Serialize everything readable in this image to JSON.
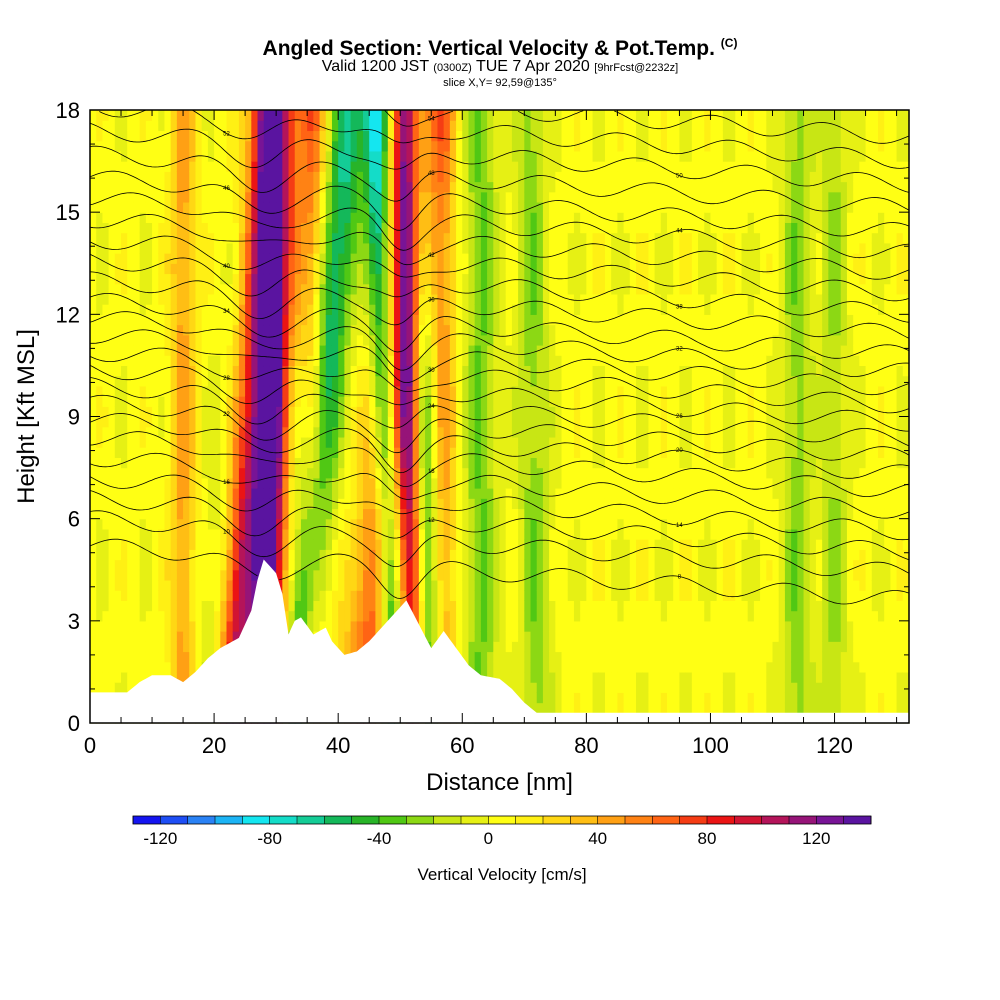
{
  "header": {
    "title_main": "Angled Section: Vertical Velocity & Pot.Temp.",
    "title_suffix": "(C)",
    "valid_prefix": "Valid 1200 JST",
    "valid_utc": "(0300Z)",
    "valid_date": "TUE 7 Apr 2020",
    "forecast": "[9hrFcst@2232z]",
    "slice": "slice X,Y= 92,59@135°"
  },
  "chart_data": {
    "type": "heatmap",
    "xlabel": "Distance [nm]",
    "ylabel": "Height [Kft MSL]",
    "xlim": [
      0,
      132
    ],
    "ylim": [
      0,
      18
    ],
    "x_ticks": [
      0,
      20,
      40,
      60,
      80,
      100,
      120
    ],
    "y_ticks": [
      0,
      3,
      6,
      9,
      12,
      15,
      18
    ],
    "colorbar": {
      "label": "Vertical Velocity [cm/s]",
      "min": -130,
      "max": 140,
      "step": 10,
      "tick_values": [
        -120,
        -80,
        -40,
        0,
        40,
        80,
        120
      ],
      "tick_labels": [
        "-120",
        "-80",
        "-40",
        "0",
        "40",
        "80",
        "120"
      ],
      "colors": [
        "#1414f0",
        "#1e4ef5",
        "#2a82f5",
        "#1cb4f5",
        "#14e6f0",
        "#14dcc8",
        "#14cc96",
        "#14b85a",
        "#28b428",
        "#50c814",
        "#8cd814",
        "#c8e614",
        "#e6f014",
        "#ffff14",
        "#fff014",
        "#ffd714",
        "#ffbe14",
        "#ffa014",
        "#ff8214",
        "#ff6414",
        "#f53c14",
        "#eb1414",
        "#d21432",
        "#b4145a",
        "#961478",
        "#781496",
        "#5a14a0"
      ]
    },
    "updrafts": [
      {
        "x_low": 29,
        "x_high": 29,
        "peak_cms": 110,
        "width_nm": 2.5
      },
      {
        "x_low": 22,
        "x_high": 27,
        "peak_cms": 80,
        "width_nm": 3
      },
      {
        "x_low": 24,
        "x_high": 32,
        "peak_cms": 60,
        "width_nm": 4
      },
      {
        "x_low": 52,
        "x_high": 51,
        "peak_cms": 95,
        "width_nm": 2
      },
      {
        "x_low": 44,
        "x_high": 53,
        "peak_cms": 65,
        "width_nm": 4
      },
      {
        "x_low": 15,
        "x_high": 15,
        "peak_cms": 40,
        "width_nm": 2
      },
      {
        "x_low": 36,
        "x_high": 36,
        "peak_cms": 40,
        "width_nm": 2
      },
      {
        "x_low": 57,
        "x_high": 57,
        "peak_cms": 40,
        "width_nm": 2
      }
    ],
    "downdrafts": [
      {
        "x_low": 20,
        "x_high": 27,
        "peak_cms": -55,
        "width_nm": 3
      },
      {
        "x_low": 33,
        "x_high": 42,
        "peak_cms": -65,
        "width_nm": 3
      },
      {
        "x_low": 49,
        "x_high": 46,
        "peak_cms": -85,
        "width_nm": 2
      },
      {
        "x_low": 55,
        "x_high": 52,
        "peak_cms": -60,
        "width_nm": 2
      },
      {
        "x_low": 63,
        "x_high": 63,
        "peak_cms": -35,
        "width_nm": 2.5
      },
      {
        "x_low": 72,
        "x_high": 71,
        "peak_cms": -30,
        "width_nm": 2.5
      },
      {
        "x_low": 114,
        "x_high": 114,
        "peak_cms": -30,
        "width_nm": 2.5
      },
      {
        "x_low": 120,
        "x_high": 120,
        "peak_cms": -25,
        "width_nm": 2
      }
    ],
    "terrain": {
      "x": [
        0,
        6,
        8,
        10,
        13,
        15,
        17,
        19,
        21,
        24,
        25,
        26,
        27,
        28,
        30,
        31,
        32,
        33,
        34,
        36,
        38,
        39,
        41,
        43,
        45,
        47,
        49,
        51,
        53,
        55,
        57,
        59,
        61,
        63,
        66,
        68,
        70,
        72,
        76,
        132
      ],
      "height_kft": [
        0.9,
        0.9,
        1.2,
        1.4,
        1.4,
        1.2,
        1.5,
        1.9,
        2.2,
        2.5,
        2.9,
        3.3,
        4.2,
        4.8,
        4.4,
        3.8,
        2.6,
        3.0,
        3.1,
        2.6,
        2.8,
        2.4,
        2.0,
        2.1,
        2.4,
        2.8,
        3.2,
        3.6,
        2.9,
        2.2,
        2.7,
        2.2,
        1.7,
        1.4,
        1.3,
        1.0,
        0.6,
        0.3,
        0.3,
        0.3
      ]
    },
    "isentropes_celsius": [
      8,
      10,
      12,
      14,
      16,
      18,
      20,
      22,
      24,
      26,
      28,
      30,
      32,
      34,
      36,
      38,
      40,
      42,
      44,
      46,
      48,
      50,
      52,
      54
    ],
    "isentrope_base_height_kft": [
      4.4,
      5.2,
      5.8,
      6.4,
      7.0,
      7.6,
      8.1,
      8.6,
      9.1,
      9.6,
      10.1,
      10.6,
      11.1,
      11.6,
      12.2,
      12.8,
      13.4,
      14.0,
      14.6,
      15.2,
      15.9,
      16.6,
      17.3,
      18.0
    ],
    "isentrope_labels": [
      "8",
      "10",
      "12",
      "14",
      "16",
      "18",
      "20",
      "22",
      "24",
      "26",
      "28",
      "30",
      "32",
      "34",
      "36",
      "38",
      "40",
      "42",
      "44",
      "46",
      "48",
      "50",
      "52",
      "54"
    ]
  }
}
